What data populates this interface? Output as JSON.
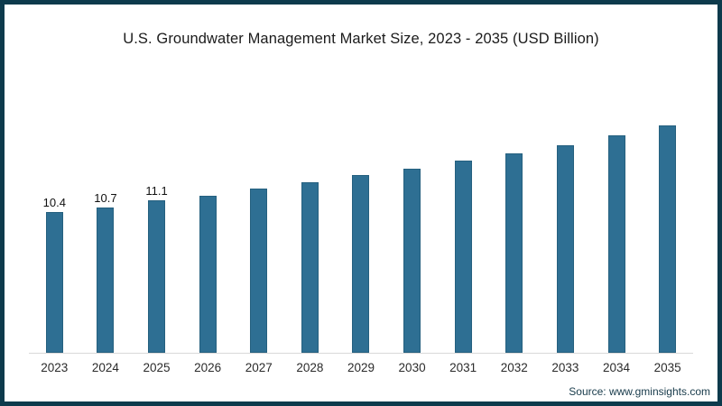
{
  "page": {
    "background": "#ffffff",
    "frame_border_color": "#0d3a4c",
    "axis_line_color": "#d8d8d8"
  },
  "chart_data": {
    "type": "bar",
    "title": "U.S. Groundwater Management Market Size, 2023 - 2035 (USD Billion)",
    "xlabel": "",
    "ylabel": "",
    "categories": [
      "2023",
      "2024",
      "2025",
      "2026",
      "2027",
      "2028",
      "2029",
      "2030",
      "2031",
      "2032",
      "2033",
      "2034",
      "2035"
    ],
    "values": [
      10.4,
      10.7,
      11.1,
      11.4,
      11.8,
      12.2,
      12.6,
      13.0,
      13.5,
      13.9,
      14.4,
      15.0,
      15.6
    ],
    "data_labels": [
      "10.4",
      "10.7",
      "11.1",
      "",
      "",
      "",
      "",
      "",
      "",
      "",
      "",
      "",
      ""
    ],
    "bar_color": "#2e6f93",
    "ylim": [
      2,
      16.5
    ],
    "grid": false,
    "legend": "none"
  },
  "source": {
    "label": "Source: www.gminsights.com"
  }
}
